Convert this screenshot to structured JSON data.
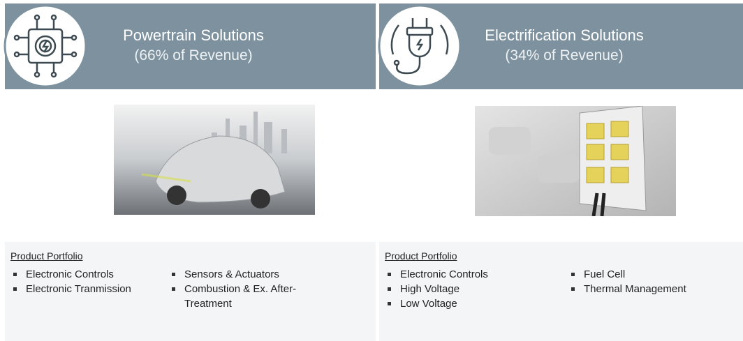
{
  "panels": [
    {
      "title": "Powertrain Solutions",
      "subtitle": "(66% of Revenue)",
      "portfolio_heading": "Product Portfolio",
      "items_left": [
        "Electronic Controls",
        "Electronic Tranmission"
      ],
      "items_right": [
        "Sensors & Actuators",
        "Combustion & Ex. After-Treatment"
      ]
    },
    {
      "title": "Electrification Solutions",
      "subtitle": "(34% of Revenue)",
      "portfolio_heading": "Product Portfolio",
      "items_left": [
        "Electronic Controls",
        "High Voltage",
        "Low Voltage"
      ],
      "items_right": [
        "Fuel Cell",
        "Thermal Management"
      ]
    }
  ]
}
